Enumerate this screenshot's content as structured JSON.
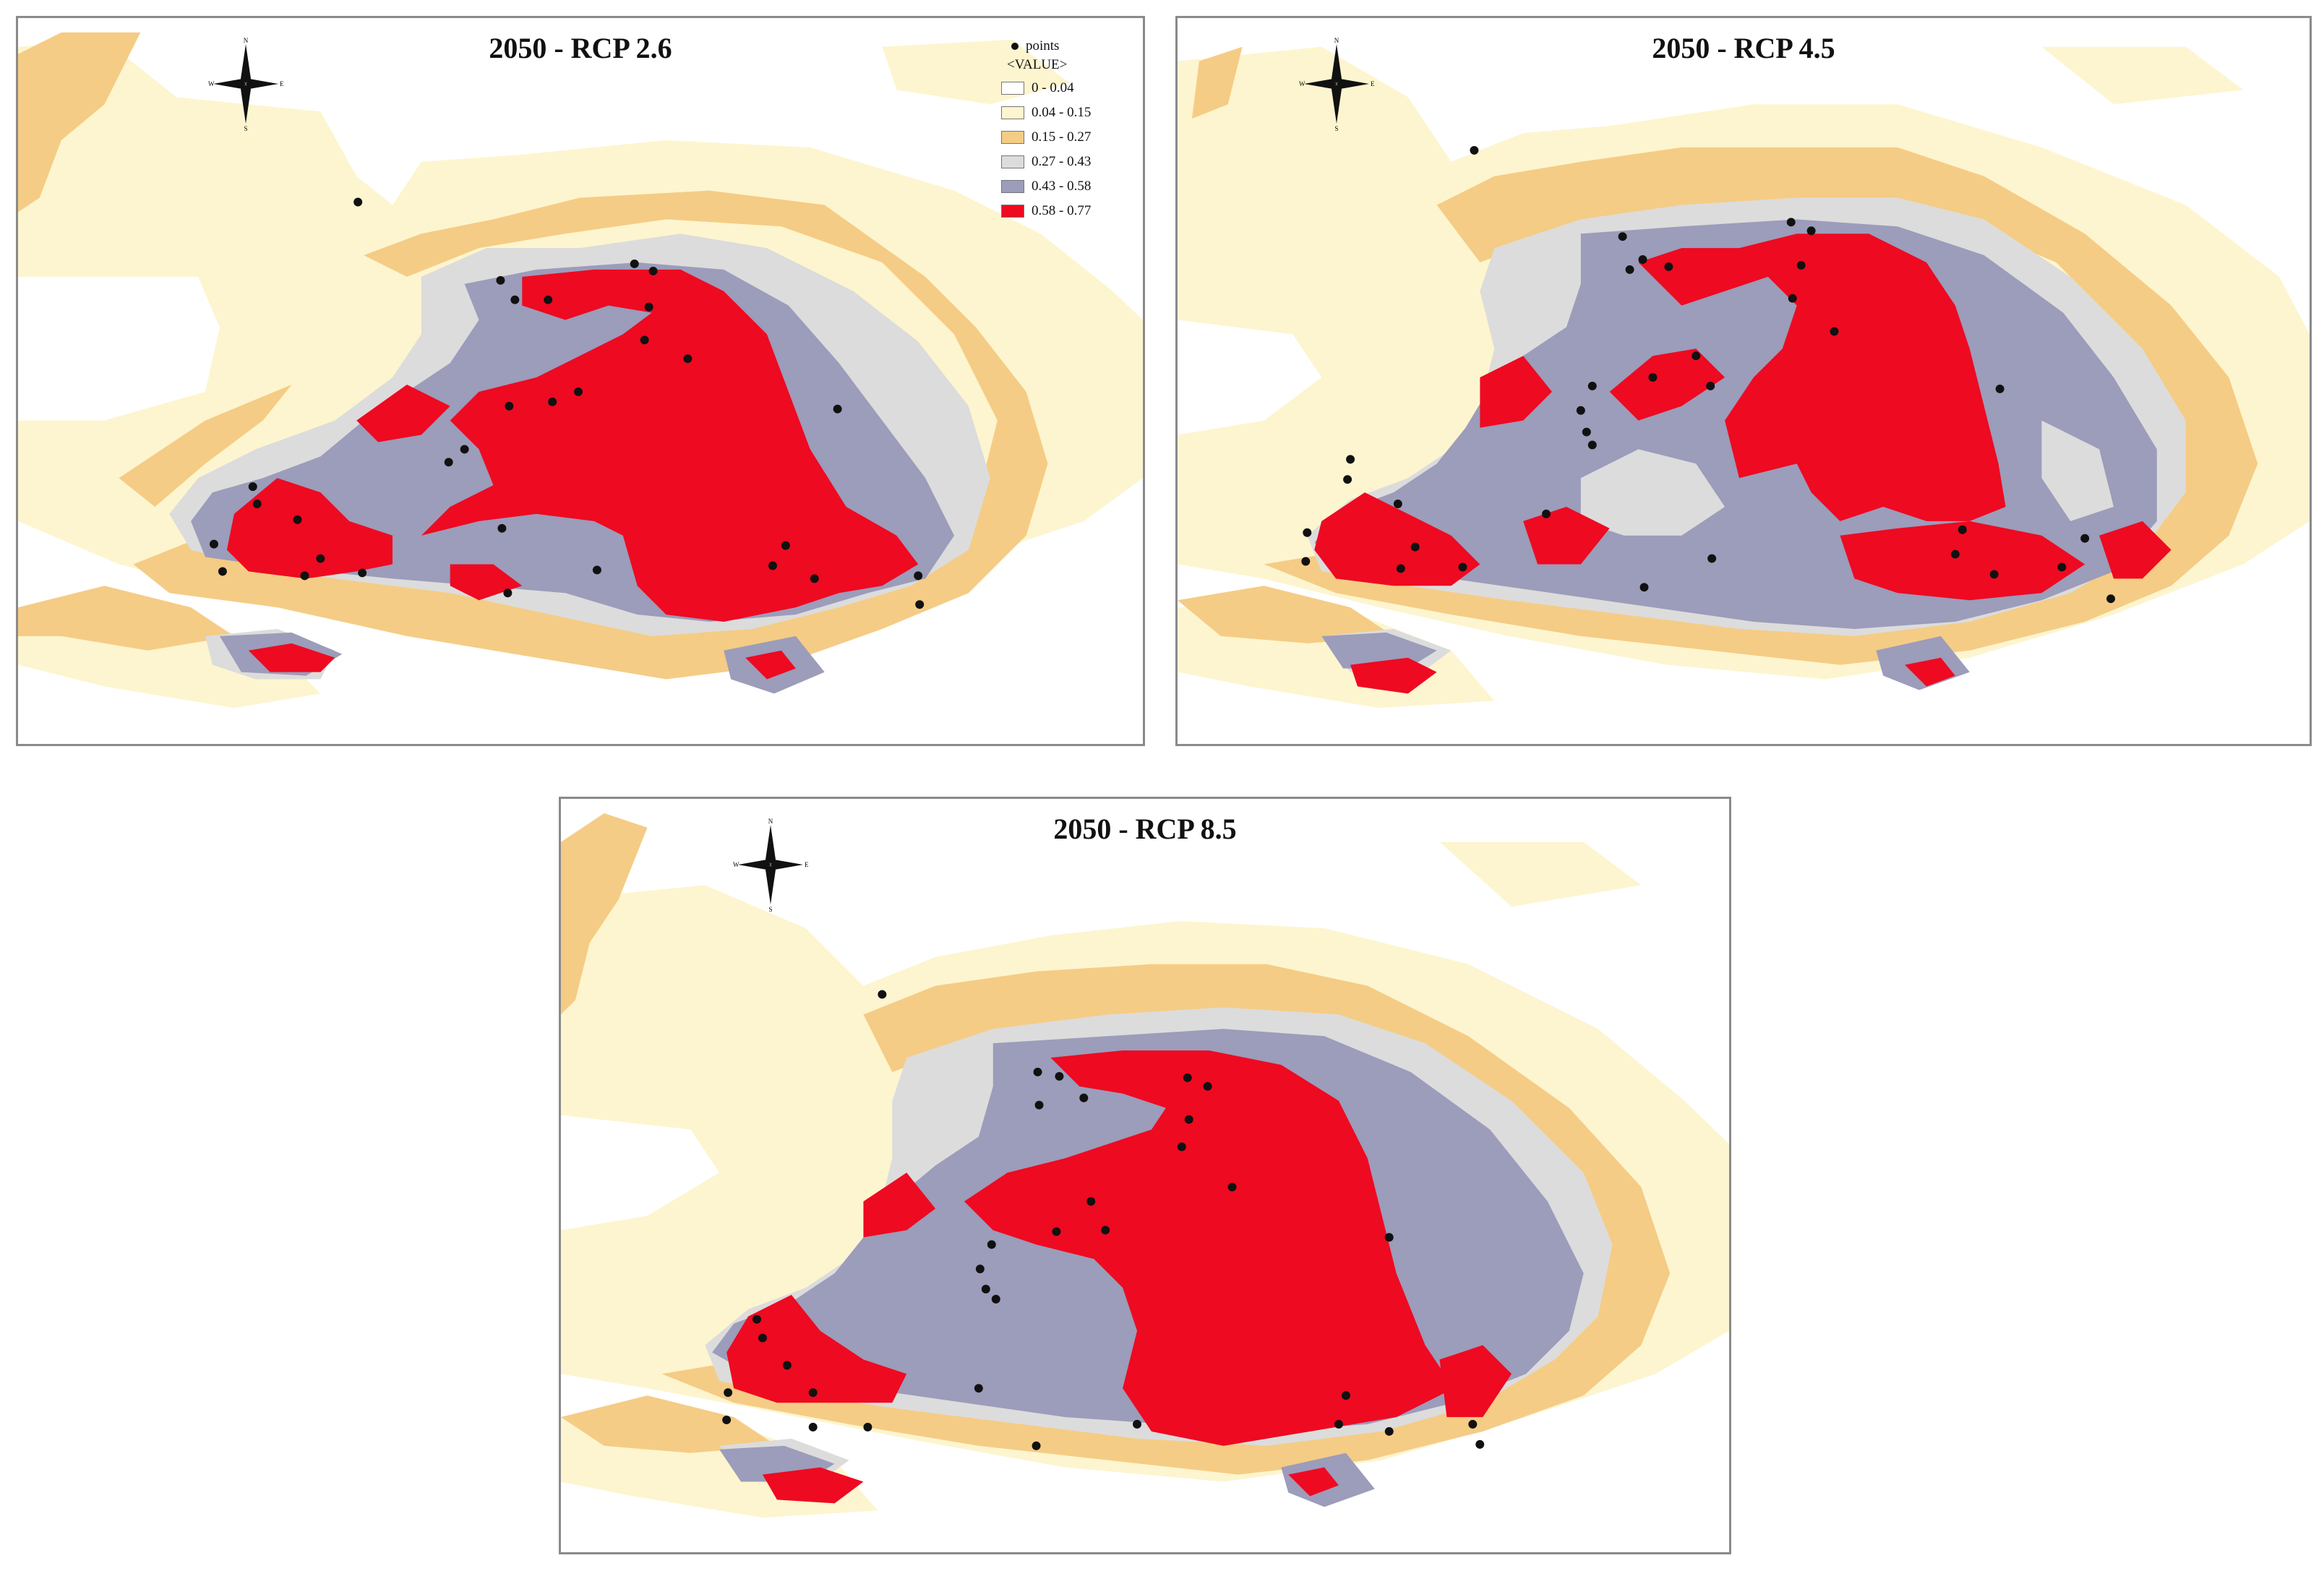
{
  "colors": {
    "c0": "#ffffff",
    "c1": "#fdf5cf",
    "c2": "#f5cc85",
    "c3": "#dcdcdc",
    "c4": "#9c9cbb",
    "c5": "#ee0a21",
    "point": "#111111"
  },
  "compass_letters": {
    "n": "N",
    "s": "S",
    "e": "E",
    "w": "W"
  },
  "legend": {
    "points_label": "points",
    "value_header": "<VALUE>",
    "classes": [
      {
        "label": "0 - 0.04",
        "color": "#ffffff"
      },
      {
        "label": "0.04 - 0.15",
        "color": "#fdf5cf"
      },
      {
        "label": "0.15 - 0.27",
        "color": "#f5cc85"
      },
      {
        "label": "0.27 - 0.43",
        "color": "#dcdcdc"
      },
      {
        "label": "0.43 - 0.58",
        "color": "#9c9cbb"
      },
      {
        "label": "0.58 - 0.77",
        "color": "#ee0a21"
      }
    ]
  },
  "panels": [
    {
      "title": "2050 - RCP 2.6",
      "icon": "compass-rose-icon"
    },
    {
      "title": "2050 - RCP 4.5",
      "icon": "compass-rose-icon"
    },
    {
      "title": "2050 - RCP 8.5",
      "icon": "compass-rose-icon"
    }
  ]
}
